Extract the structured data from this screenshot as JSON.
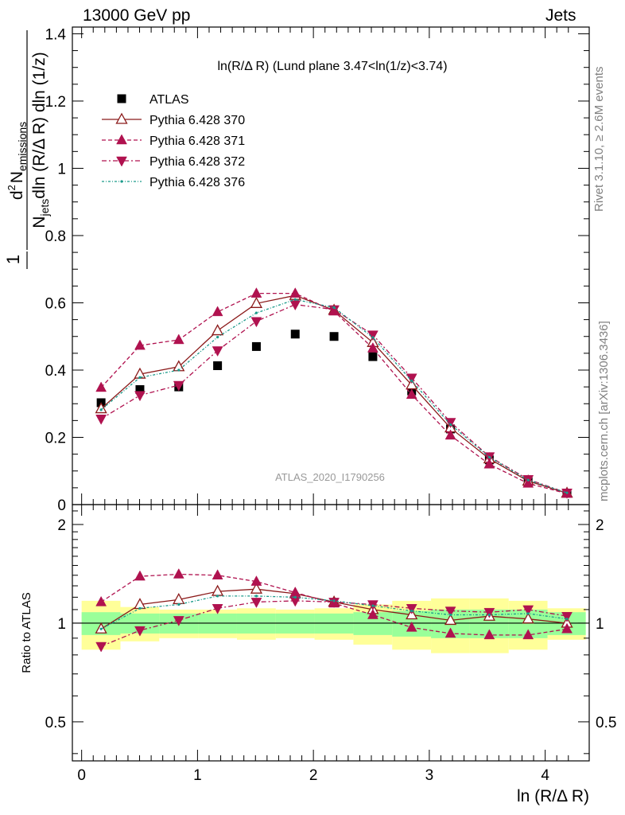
{
  "header": {
    "left": "13000 GeV pp",
    "right": "Jets"
  },
  "side": {
    "rivet": "Rivet 3.1.10, ≥ 2.6M events",
    "mcplots": "mcplots.cern.ch [arXiv:1306.3436]"
  },
  "colors": {
    "data": "#000000",
    "p370": "#8b1a1a",
    "p371": "#b0124f",
    "p372": "#b0124f",
    "p376": "#1a9a8a",
    "band_inner": "#99ff99",
    "band_outer": "#ffff99",
    "watermark": "#999999"
  },
  "chart_data": [
    {
      "type": "line",
      "title": "ln(R/Δ R) (Lund plane 3.47<ln(1/z)<3.74)",
      "ylabel_parts": {
        "one": "1",
        "njets": "N",
        "njets_sub": "jets",
        "den_rest": "dln (R/Δ R) dln (1/z)",
        "num_d2": "d",
        "num_sup": "2",
        "num_n": "N",
        "num_sub": "emissions"
      },
      "watermark": "ATLAS_2020_I1790256",
      "ylim": [
        0,
        1.42
      ],
      "xlim": [
        -0.08,
        4.38
      ],
      "yticks": [
        0,
        0.2,
        0.4,
        0.6,
        0.8,
        1,
        1.2,
        1.4
      ],
      "ytick_labels": [
        "0",
        "0.2",
        "0.4",
        "0.6",
        "0.8",
        "1",
        "1.2",
        "1.4"
      ],
      "legend_position": "top-left",
      "x": [
        0.168,
        0.503,
        0.838,
        1.173,
        1.508,
        1.843,
        2.178,
        2.513,
        2.848,
        3.183,
        3.518,
        3.853,
        4.188
      ],
      "series": [
        {
          "name": "ATLAS",
          "marker": "square",
          "values": [
            0.303,
            0.342,
            0.35,
            0.413,
            0.47,
            0.507,
            0.5,
            0.44,
            0.338,
            0.225,
            0.133,
            0.068,
            0.034
          ]
        },
        {
          "name": "Pythia 6.428 370",
          "marker": "triangle-up-open",
          "values": [
            0.285,
            0.388,
            0.41,
            0.517,
            0.598,
            0.622,
            0.578,
            0.482,
            0.356,
            0.228,
            0.136,
            0.07,
            0.034
          ]
        },
        {
          "name": "Pythia 6.428 371",
          "marker": "triangle-up",
          "values": [
            0.348,
            0.473,
            0.49,
            0.573,
            0.628,
            0.628,
            0.575,
            0.465,
            0.327,
            0.206,
            0.12,
            0.063,
            0.033
          ]
        },
        {
          "name": "Pythia 6.428 372",
          "marker": "triangle-down",
          "values": [
            0.255,
            0.325,
            0.355,
            0.458,
            0.545,
            0.595,
            0.58,
            0.505,
            0.377,
            0.245,
            0.143,
            0.075,
            0.035
          ]
        },
        {
          "name": "Pythia 6.428 376",
          "marker": "dot",
          "values": [
            0.282,
            0.378,
            0.4,
            0.498,
            0.57,
            0.61,
            0.586,
            0.497,
            0.368,
            0.238,
            0.141,
            0.073,
            0.035
          ]
        }
      ]
    },
    {
      "type": "line",
      "ylabel": "Ratio to ATLAS",
      "xlabel": "ln (R/Δ R)",
      "ylim": [
        0.38,
        2.3
      ],
      "log_y": true,
      "yticks": [
        0.5,
        1,
        2
      ],
      "ytick_labels": [
        "0.5",
        "1",
        "2"
      ],
      "xticks": [
        0,
        1,
        2,
        3,
        4
      ],
      "xtick_labels": [
        "0",
        "1",
        "2",
        "3",
        "4"
      ],
      "x": [
        0.168,
        0.503,
        0.838,
        1.173,
        1.508,
        1.843,
        2.178,
        2.513,
        2.848,
        3.183,
        3.518,
        3.853,
        4.188
      ],
      "band_edges": [
        0.0,
        0.335,
        0.67,
        1.005,
        1.34,
        1.675,
        2.01,
        2.345,
        2.68,
        3.015,
        3.35,
        3.685,
        4.02,
        4.35
      ],
      "band_inner": [
        [
          0.92,
          1.08
        ],
        [
          0.93,
          1.07
        ],
        [
          0.93,
          1.07
        ],
        [
          0.93,
          1.07
        ],
        [
          0.93,
          1.07
        ],
        [
          0.93,
          1.07
        ],
        [
          0.93,
          1.07
        ],
        [
          0.92,
          1.08
        ],
        [
          0.91,
          1.09
        ],
        [
          0.9,
          1.1
        ],
        [
          0.9,
          1.1
        ],
        [
          0.9,
          1.1
        ],
        [
          0.92,
          1.08
        ]
      ],
      "band_outer": [
        [
          0.83,
          1.17
        ],
        [
          0.88,
          1.12
        ],
        [
          0.9,
          1.1
        ],
        [
          0.9,
          1.1
        ],
        [
          0.89,
          1.11
        ],
        [
          0.9,
          1.1
        ],
        [
          0.89,
          1.11
        ],
        [
          0.86,
          1.14
        ],
        [
          0.83,
          1.17
        ],
        [
          0.81,
          1.19
        ],
        [
          0.81,
          1.19
        ],
        [
          0.83,
          1.17
        ],
        [
          0.89,
          1.11
        ]
      ],
      "series": [
        {
          "name": "Pythia 6.428 370",
          "values": [
            0.96,
            1.14,
            1.18,
            1.25,
            1.27,
            1.23,
            1.16,
            1.1,
            1.06,
            1.02,
            1.05,
            1.03,
            1.0
          ]
        },
        {
          "name": "Pythia 6.428 371",
          "values": [
            1.16,
            1.39,
            1.41,
            1.4,
            1.34,
            1.24,
            1.15,
            1.06,
            0.97,
            0.93,
            0.92,
            0.92,
            0.96
          ]
        },
        {
          "name": "Pythia 6.428 372",
          "values": [
            0.85,
            0.95,
            1.02,
            1.11,
            1.16,
            1.17,
            1.16,
            1.14,
            1.11,
            1.09,
            1.08,
            1.1,
            1.05
          ]
        },
        {
          "name": "Pythia 6.428 376",
          "values": [
            0.96,
            1.11,
            1.14,
            1.21,
            1.21,
            1.2,
            1.17,
            1.13,
            1.09,
            1.06,
            1.06,
            1.07,
            1.03
          ]
        }
      ]
    }
  ]
}
